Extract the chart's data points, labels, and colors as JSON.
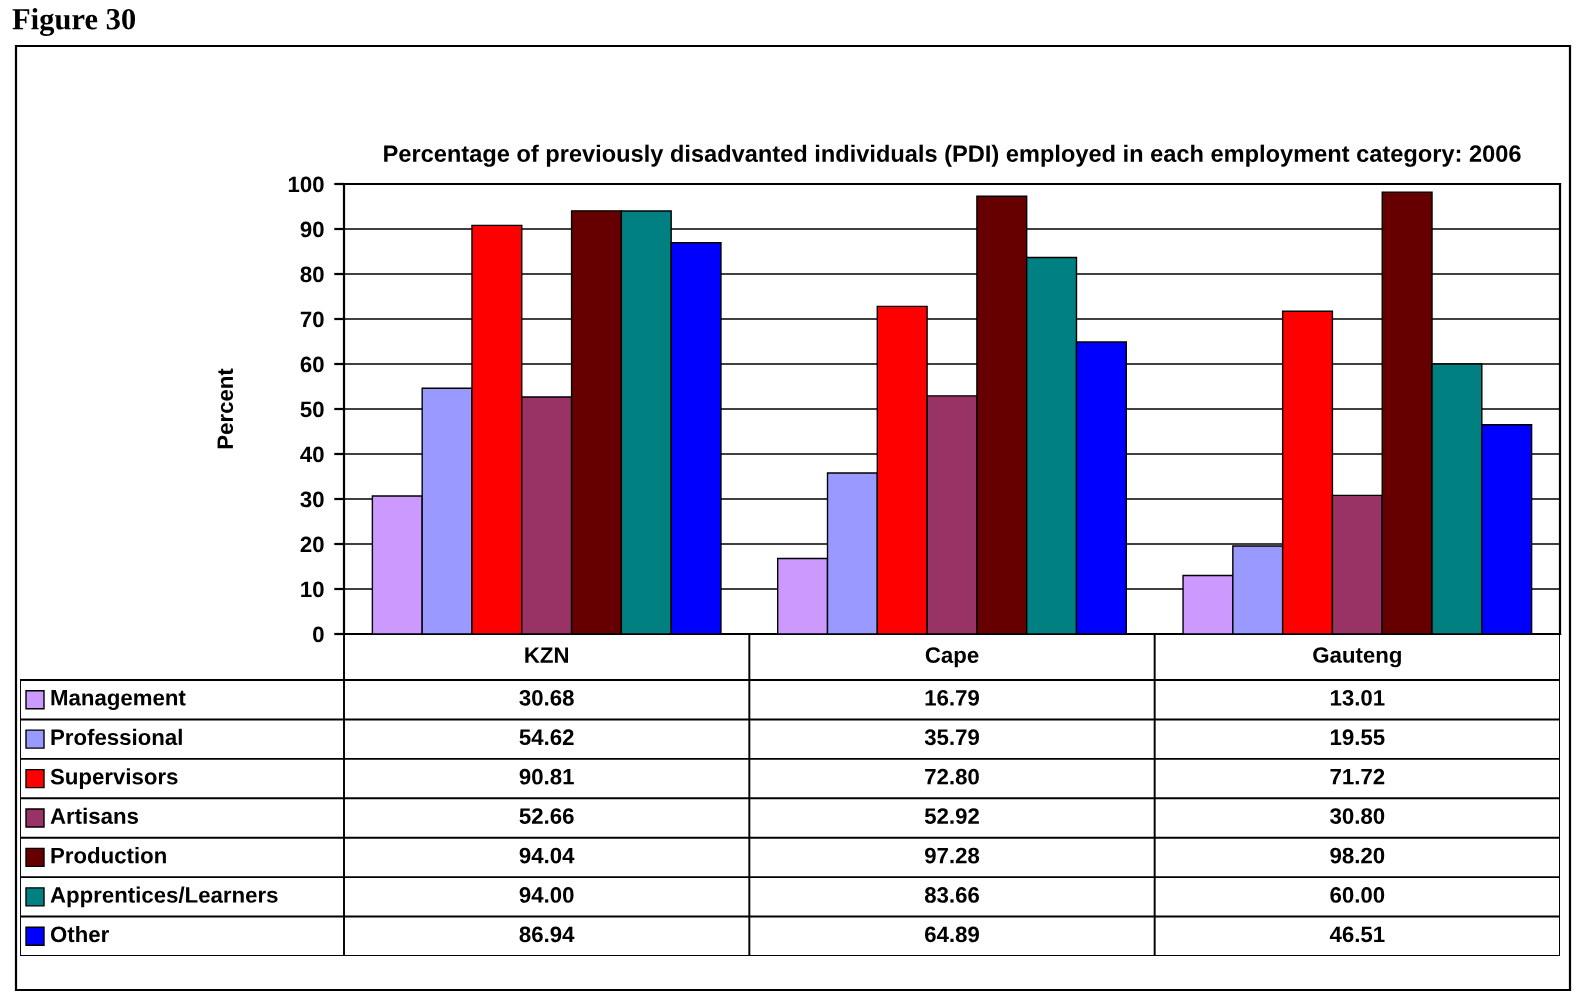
{
  "chart_data": {
    "type": "bar",
    "title": "Percentage of previously disadvanted individuals (PDI) employed in each employment category: 2006",
    "ylabel": "Percent",
    "annotations": [
      "Figure 30"
    ],
    "categories": [
      "KZN",
      "Cape",
      "Gauteng"
    ],
    "series": [
      {
        "name": "Management",
        "color": "#cc99ff",
        "values": [
          30.68,
          16.79,
          13.01
        ],
        "value_labels": [
          "30.68",
          "16.79",
          "13.01"
        ]
      },
      {
        "name": "Professional",
        "color": "#9999ff",
        "values": [
          54.62,
          35.79,
          19.55
        ],
        "value_labels": [
          "54.62",
          "35.79",
          "19.55"
        ]
      },
      {
        "name": "Supervisors",
        "color": "#ff0000",
        "values": [
          90.81,
          72.8,
          71.72
        ],
        "value_labels": [
          "90.81",
          "72.80",
          "71.72"
        ]
      },
      {
        "name": "Artisans",
        "color": "#993366",
        "values": [
          52.66,
          52.92,
          30.8
        ],
        "value_labels": [
          "52.66",
          "52.92",
          "30.80"
        ]
      },
      {
        "name": "Production",
        "color": "#660000",
        "values": [
          94.04,
          97.28,
          98.2
        ],
        "value_labels": [
          "94.04",
          "97.28",
          "98.20"
        ]
      },
      {
        "name": "Apprentices/Learners",
        "color": "#008080",
        "values": [
          94.0,
          83.66,
          60.0
        ],
        "value_labels": [
          "94.00",
          "83.66",
          "60.00"
        ]
      },
      {
        "name": "Other",
        "color": "#0000ff",
        "values": [
          86.94,
          64.89,
          46.51
        ],
        "value_labels": [
          "86.94",
          "64.89",
          "46.51"
        ]
      }
    ],
    "ylim": [
      0,
      100
    ],
    "yticks": [
      0,
      10,
      20,
      30,
      40,
      50,
      60,
      70,
      80,
      90,
      100
    ],
    "grid": "y",
    "legend": "bottom"
  }
}
